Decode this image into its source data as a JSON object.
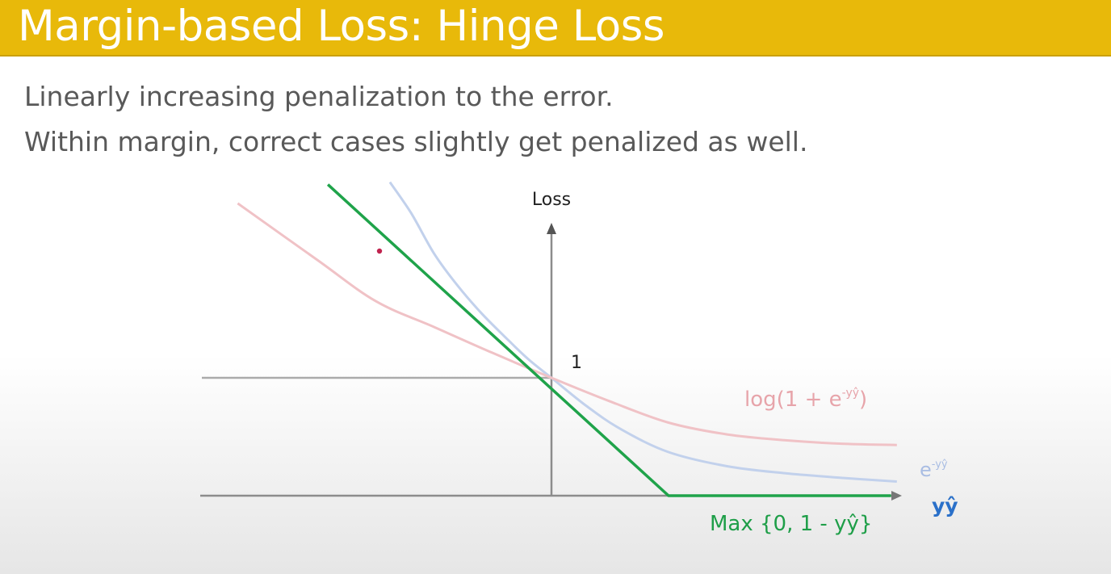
{
  "slide": {
    "title": "Margin-based Loss: Hinge Loss",
    "bullets": [
      "Linearly increasing penalization to the error.",
      "Within margin, correct cases slightly get penalized as well."
    ]
  },
  "colors": {
    "title_bar": "#e8b90a",
    "hinge": "#1fa34a",
    "logistic": "#f0c2c6",
    "exponential": "#c2d1ec",
    "axis": "#8c8c8c"
  },
  "chart_data": {
    "type": "line",
    "ylabel": "Loss",
    "xlabel": "yŷ",
    "y_tick_label": "1",
    "xlim": [
      -3.0,
      2.95
    ],
    "ylim": [
      0,
      2.65
    ],
    "series": [
      {
        "name": "Max {0, 1 - yŷ}",
        "name_parts": [
          "Max {0, 1 - yŷ}"
        ],
        "color": "#1fa34a",
        "x": [
          -1.91,
          1.0,
          2.9
        ],
        "y": [
          2.64,
          0.0,
          0.0
        ]
      },
      {
        "name": "log(1 + e-yŷ)",
        "name_parts": [
          "log(1 + e",
          "-yŷ",
          ")"
        ],
        "color": "#f0c2c6",
        "x": [
          -2.68,
          -2.0,
          -1.5,
          -1.0,
          -0.5,
          0.0,
          0.5,
          1.0,
          1.5,
          2.0,
          2.5,
          2.95
        ],
        "y": [
          2.48,
          2.0,
          1.65,
          1.43,
          1.21,
          1.0,
          0.8,
          0.62,
          0.52,
          0.47,
          0.44,
          0.43
        ]
      },
      {
        "name": "e-yŷ",
        "name_parts": [
          "e",
          "-yŷ"
        ],
        "color": "#c2d1ec",
        "x": [
          -1.38,
          -1.2,
          -1.0,
          -0.8,
          -0.6,
          -0.4,
          -0.2,
          0.0,
          0.3,
          0.6,
          1.0,
          1.5,
          2.0,
          2.5,
          2.95
        ],
        "y": [
          2.66,
          2.4,
          2.05,
          1.78,
          1.55,
          1.35,
          1.16,
          1.0,
          0.76,
          0.56,
          0.37,
          0.25,
          0.19,
          0.15,
          0.12
        ]
      }
    ]
  }
}
